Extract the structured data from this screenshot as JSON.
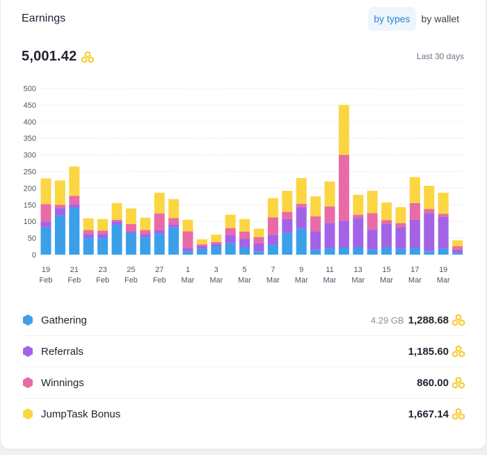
{
  "header": {
    "title": "Earnings",
    "tabs": [
      {
        "label": "by types",
        "active": true
      },
      {
        "label": "by wallet",
        "active": false
      }
    ],
    "total": "5,001.42",
    "period": "Last 30 days"
  },
  "colors": {
    "gathering": "#3aa0ea",
    "referrals": "#a463e6",
    "winnings": "#e96ba6",
    "bonus": "#fbd642",
    "coin": "#f6c619",
    "accent": "#2f80d6"
  },
  "chart_data": {
    "type": "bar",
    "stacked": true,
    "ylim": [
      0,
      500
    ],
    "yticks": [
      0,
      50,
      100,
      150,
      200,
      250,
      300,
      350,
      400,
      450,
      500
    ],
    "grid": true,
    "categories": [
      "19 Feb",
      "20 Feb",
      "21 Feb",
      "22 Feb",
      "23 Feb",
      "24 Feb",
      "25 Feb",
      "26 Feb",
      "27 Feb",
      "28 Feb",
      "1 Mar",
      "2 Mar",
      "3 Mar",
      "4 Mar",
      "5 Mar",
      "6 Mar",
      "7 Mar",
      "8 Mar",
      "9 Mar",
      "10 Mar",
      "11 Mar",
      "12 Mar",
      "13 Mar",
      "14 Mar",
      "15 Mar",
      "16 Mar",
      "17 Mar",
      "18 Mar",
      "19 Mar",
      "20 Mar"
    ],
    "xtick_labels": [
      {
        "index": 0,
        "day": "19",
        "month": "Feb"
      },
      {
        "index": 2,
        "day": "21",
        "month": "Feb"
      },
      {
        "index": 4,
        "day": "23",
        "month": "Feb"
      },
      {
        "index": 6,
        "day": "25",
        "month": "Feb"
      },
      {
        "index": 8,
        "day": "27",
        "month": "Feb"
      },
      {
        "index": 10,
        "day": "1",
        "month": "Mar"
      },
      {
        "index": 12,
        "day": "3",
        "month": "Mar"
      },
      {
        "index": 14,
        "day": "5",
        "month": "Mar"
      },
      {
        "index": 16,
        "day": "7",
        "month": "Mar"
      },
      {
        "index": 18,
        "day": "9",
        "month": "Mar"
      },
      {
        "index": 20,
        "day": "11",
        "month": "Mar"
      },
      {
        "index": 22,
        "day": "13",
        "month": "Mar"
      },
      {
        "index": 24,
        "day": "15",
        "month": "Mar"
      },
      {
        "index": 26,
        "day": "17",
        "month": "Mar"
      },
      {
        "index": 28,
        "day": "19",
        "month": "Mar"
      }
    ],
    "series": [
      {
        "name": "Gathering",
        "color": "#3aa0ea",
        "values": [
          82,
          118,
          140,
          50,
          50,
          90,
          65,
          52,
          62,
          82,
          10,
          18,
          25,
          35,
          22,
          10,
          30,
          65,
          78,
          15,
          20,
          22,
          22,
          15,
          22,
          18,
          20,
          10,
          18,
          5
        ]
      },
      {
        "name": "Referrals",
        "color": "#a463e6",
        "values": [
          18,
          22,
          12,
          12,
          12,
          10,
          5,
          10,
          12,
          8,
          10,
          8,
          8,
          25,
          25,
          25,
          30,
          42,
          65,
          55,
          75,
          80,
          88,
          60,
          70,
          65,
          85,
          115,
          95,
          10
        ]
      },
      {
        "name": "Winnings",
        "color": "#e96ba6",
        "values": [
          52,
          10,
          25,
          12,
          10,
          5,
          22,
          12,
          50,
          20,
          50,
          5,
          5,
          20,
          22,
          18,
          52,
          22,
          10,
          45,
          50,
          198,
          10,
          50,
          12,
          12,
          50,
          12,
          10,
          10
        ]
      },
      {
        "name": "JumpTask Bonus",
        "color": "#fbd642",
        "values": [
          77,
          73,
          88,
          35,
          35,
          50,
          47,
          37,
          62,
          57,
          35,
          15,
          22,
          40,
          38,
          25,
          58,
          63,
          77,
          60,
          75,
          150,
          60,
          67,
          53,
          48,
          78,
          70,
          63,
          18
        ]
      }
    ]
  },
  "legend": [
    {
      "label": "Gathering",
      "extra": "4.29 GB",
      "value": "1,288.68",
      "color": "#3aa0ea"
    },
    {
      "label": "Referrals",
      "extra": "",
      "value": "1,185.60",
      "color": "#a463e6"
    },
    {
      "label": "Winnings",
      "extra": "",
      "value": "860.00",
      "color": "#e96ba6"
    },
    {
      "label": "JumpTask Bonus",
      "extra": "",
      "value": "1,667.14",
      "color": "#fbd642"
    }
  ]
}
